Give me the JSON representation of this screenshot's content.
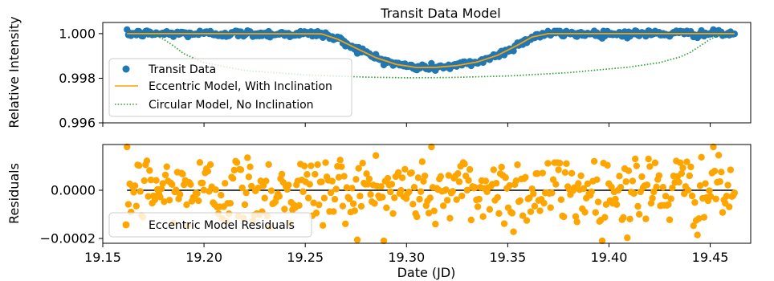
{
  "chart_data": [
    {
      "type": "scatter",
      "title": "Transit Data Model",
      "xlabel": "",
      "ylabel": "Relative Intensity",
      "xlim": [
        19.15,
        19.47
      ],
      "ylim": [
        0.996,
        1.0005
      ],
      "y_ticks": [
        0.996,
        0.998,
        1.0
      ],
      "y_tick_labels": [
        "0.996",
        "0.998",
        "1.000"
      ],
      "legend_position": "center-left",
      "grid": false,
      "series": [
        {
          "name": "Transit Data",
          "kind": "scatter",
          "color": "#1f77b4",
          "x_range": [
            19.162,
            19.462
          ],
          "point_count": 460,
          "noise_sigma": 8e-05,
          "model": "Eccentric Model, With Inclination"
        },
        {
          "name": "Eccentric Model, With Inclination",
          "kind": "line",
          "color": "#ff9f00",
          "x": [
            19.162,
            19.2,
            19.258,
            19.266,
            19.275,
            19.285,
            19.295,
            19.305,
            19.315,
            19.325,
            19.335,
            19.345,
            19.355,
            19.362,
            19.37,
            19.42,
            19.462
          ],
          "y": [
            1.0,
            1.0,
            0.99999,
            0.99975,
            0.99935,
            0.99892,
            0.99862,
            0.99848,
            0.99849,
            0.99857,
            0.99873,
            0.99903,
            0.99949,
            0.99985,
            1.0,
            1.0,
            1.0
          ]
        },
        {
          "name": "Circular Model, No Inclination",
          "kind": "line",
          "style": "dotted",
          "color": "#2ca02c",
          "x": [
            19.165,
            19.175,
            19.18,
            19.185,
            19.19,
            19.2,
            19.22,
            19.25,
            19.28,
            19.3,
            19.32,
            19.35,
            19.38,
            19.41,
            19.425,
            19.435,
            19.44,
            19.445,
            19.45,
            19.455,
            19.46
          ],
          "y": [
            1.0,
            0.99995,
            0.99975,
            0.99945,
            0.9991,
            0.9987,
            0.99835,
            0.99815,
            0.99805,
            0.99802,
            0.99803,
            0.9981,
            0.99825,
            0.9985,
            0.9987,
            0.99895,
            0.99915,
            0.99945,
            0.99975,
            0.99995,
            1.0
          ]
        }
      ]
    },
    {
      "type": "scatter",
      "title": "",
      "xlabel": "Date (JD)",
      "ylabel": "Residuals",
      "xlim": [
        19.15,
        19.47
      ],
      "ylim": [
        -0.00022,
        0.00019
      ],
      "x_ticks": [
        19.15,
        19.2,
        19.25,
        19.3,
        19.35,
        19.4,
        19.45
      ],
      "x_tick_labels": [
        "19.15",
        "19.20",
        "19.25",
        "19.30",
        "19.35",
        "19.40",
        "19.45"
      ],
      "y_ticks": [
        0.0,
        -0.0002
      ],
      "y_tick_labels": [
        "0.0000",
        "−0.0002"
      ],
      "legend_position": "lower-left",
      "grid": false,
      "zero_line": {
        "y": 0.0,
        "color": "#000000",
        "x_range": [
          19.162,
          19.462
        ]
      },
      "series": [
        {
          "name": "Eccentric Model Residuals",
          "kind": "scatter",
          "color": "#ffa500",
          "x_range": [
            19.162,
            19.462
          ],
          "point_count": 460,
          "noise_sigma": 8e-05
        }
      ]
    }
  ]
}
